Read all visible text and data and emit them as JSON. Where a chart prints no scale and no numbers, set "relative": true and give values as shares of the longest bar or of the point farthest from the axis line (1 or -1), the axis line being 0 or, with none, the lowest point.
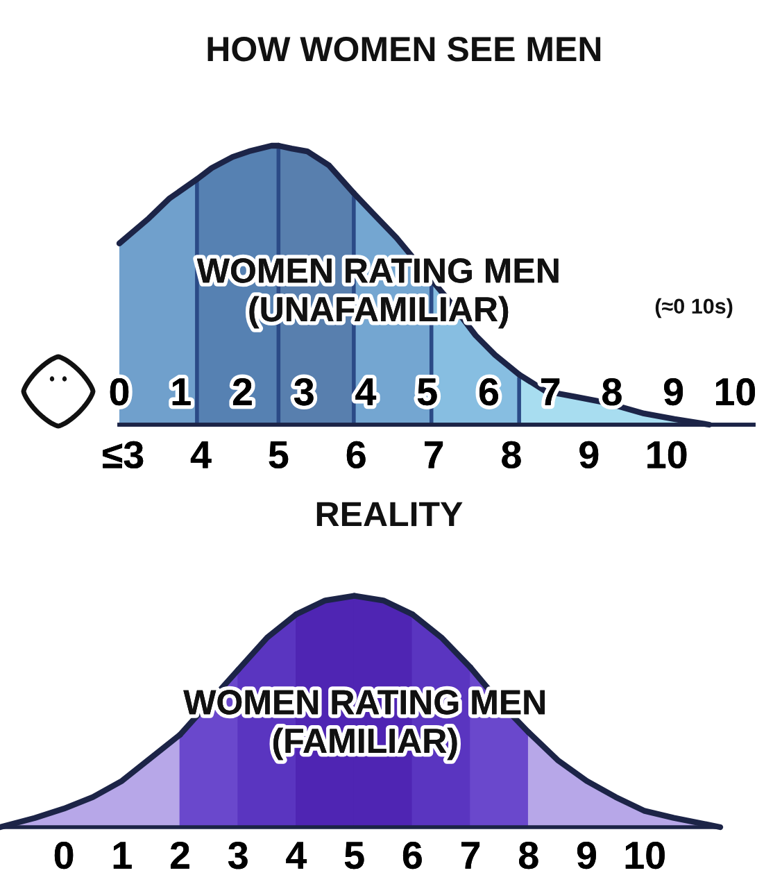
{
  "chart_data": [
    {
      "type": "area",
      "relative": true,
      "title": "HOW WOMEN SEE MEN",
      "xlabel": "REALITY",
      "series": [
        {
          "color": "#70a0cc",
          "x": [
            2.95,
            3.33,
            3.59,
            3.95
          ],
          "values": [
            0.65,
            0.74,
            0.81,
            0.88
          ]
        },
        {
          "color": "#5681b2",
          "x": [
            3.95,
            4.14,
            4.41,
            4.62,
            4.91,
            5
          ],
          "values": [
            0.88,
            0.92,
            0.96,
            0.98,
            1.0,
            1.0
          ]
        },
        {
          "color": "#587fae",
          "x": [
            5,
            5.17,
            5.37,
            5.65,
            5.97
          ],
          "values": [
            1.0,
            0.99,
            0.98,
            0.93,
            0.83
          ]
        },
        {
          "color": "#74a6d1",
          "x": [
            5.97,
            6.21,
            6.52,
            6.76,
            6.97
          ],
          "values": [
            0.83,
            0.76,
            0.67,
            0.59,
            0.52
          ]
        },
        {
          "color": "#87bee1",
          "x": [
            6.97,
            7.24,
            7.54,
            7.79,
            8.1
          ],
          "values": [
            0.52,
            0.43,
            0.32,
            0.25,
            0.18
          ]
        },
        {
          "color": "#a8ddf0",
          "x": [
            8.1,
            8.44,
            8.83,
            9.2,
            9.71,
            10.1,
            10.55
          ],
          "values": [
            0.18,
            0.12,
            0.1,
            0.08,
            0.04,
            0.02,
            0
          ]
        }
      ],
      "xlim": [
        2.95,
        11.12
      ],
      "xticks": [
        {
          "value": 3,
          "label": "≤3"
        },
        4,
        5,
        6,
        7,
        8,
        9,
        10
      ],
      "x2lim": [
        0,
        10.3
      ],
      "x2ticks": [
        0,
        1,
        2,
        3,
        4,
        5,
        6,
        7,
        8,
        9,
        10
      ],
      "ref_lines": [
        {
          "axis": "x",
          "value": 3.95,
          "color": "#2b4a86"
        },
        {
          "axis": "x",
          "value": 5,
          "color": "#2b4a86"
        },
        {
          "axis": "x",
          "value": 5.97,
          "color": "#2b4a86"
        },
        {
          "axis": "x",
          "value": 6.97,
          "color": "#2b4a86"
        },
        {
          "axis": "x",
          "value": 8.1,
          "color": "#2b4a86"
        }
      ],
      "annotations": [
        "WOMEN RATING MEN\n(UNAFAMILIAR)",
        "(≈0 10s)"
      ]
    },
    {
      "type": "area",
      "relative": true,
      "series": [
        {
          "color": "#b7a7e8",
          "x": [
            -1.1,
            -0.5,
            0,
            0.5,
            1,
            1.5,
            2
          ],
          "values": [
            0,
            0.04,
            0.08,
            0.13,
            0.2,
            0.3,
            0.4
          ]
        },
        {
          "color": "#6a48cc",
          "x": [
            2,
            2.5,
            3
          ],
          "values": [
            0.4,
            0.54,
            0.68
          ]
        },
        {
          "color": "#5a35c0",
          "x": [
            3,
            3.5,
            4
          ],
          "values": [
            0.68,
            0.82,
            0.92
          ]
        },
        {
          "color": "#4f25b3",
          "x": [
            4,
            4.5,
            5
          ],
          "values": [
            0.92,
            0.98,
            1.0
          ]
        },
        {
          "color": "#4f25b3",
          "x": [
            5,
            5.5,
            6
          ],
          "values": [
            1.0,
            0.98,
            0.92
          ]
        },
        {
          "color": "#5a35c0",
          "x": [
            6,
            6.5,
            7
          ],
          "values": [
            0.92,
            0.82,
            0.69
          ]
        },
        {
          "color": "#6a48cc",
          "x": [
            7,
            7.5,
            8
          ],
          "values": [
            0.69,
            0.54,
            0.41
          ]
        },
        {
          "color": "#b7a7e8",
          "x": [
            8,
            8.5,
            9,
            9.5,
            10,
            10.5,
            11.3
          ],
          "values": [
            0.41,
            0.29,
            0.2,
            0.13,
            0.07,
            0.04,
            0
          ]
        }
      ],
      "xlim": [
        -1.1,
        11.3
      ],
      "xticks": [
        0,
        1,
        2,
        3,
        4,
        5,
        6,
        7,
        8,
        9,
        10
      ],
      "annotations": [
        "WOMEN RATING MEN\n(FAMILIAR)"
      ]
    }
  ]
}
